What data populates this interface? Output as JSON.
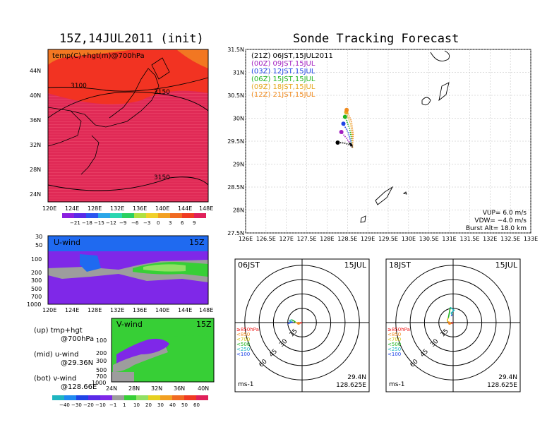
{
  "panel_titles": {
    "init": "15Z,14JUL2011 (init)",
    "tracking": "Sonde Tracking Forecast"
  },
  "colors": {
    "red": "#fb2a1e",
    "magenta": "#db1f6c",
    "purple": "#7f28e8",
    "blue": "#1f6af0",
    "green": "#37cf36",
    "lightgreen": "#91e064",
    "gray": "#9d9d9d",
    "orange": "#f08a1e"
  },
  "chart_data": [
    {
      "id": "map_700hpa",
      "type": "heatmap",
      "label": "temp(C)+hgt(m)@700hPa",
      "x_ticks": [
        "120E",
        "124E",
        "128E",
        "132E",
        "136E",
        "140E",
        "144E",
        "148E"
      ],
      "y_ticks": [
        "44N",
        "40N",
        "36N",
        "32N",
        "28N",
        "24N"
      ],
      "contour_labels": [
        "3100",
        "3150",
        "3150"
      ],
      "colorbar_labels": [
        "−21",
        "−18",
        "−15",
        "−12",
        "−9",
        "−6",
        "−3",
        "0",
        "3",
        "6",
        "9"
      ]
    },
    {
      "id": "u_wind",
      "type": "heatmap",
      "label": "U-wind",
      "time": "15Z",
      "y_ticks": [
        "30",
        "50",
        "100",
        "200",
        "300",
        "500",
        "700",
        "1000"
      ],
      "x_ticks": [
        "120E",
        "124E",
        "128E",
        "132E",
        "136E",
        "140E",
        "144E",
        "148E"
      ]
    },
    {
      "id": "v_wind",
      "type": "heatmap",
      "label": "V-wind",
      "time": "15Z",
      "y_ticks": [
        "100",
        "200",
        "300",
        "500",
        "700",
        "1000"
      ],
      "x_ticks": [
        "24N",
        "28N",
        "32N",
        "36N",
        "40N"
      ],
      "colorbar_labels": [
        "−40",
        "−30",
        "−20",
        "−10",
        "−1",
        "1",
        "10",
        "20",
        "30",
        "40",
        "50",
        "60"
      ]
    },
    {
      "id": "tracking",
      "type": "line",
      "xlim": [
        126,
        133
      ],
      "ylim": [
        27.5,
        31.5
      ],
      "x_ticks": [
        "126E",
        "126.5E",
        "127E",
        "127.5E",
        "128E",
        "128.5E",
        "129E",
        "129.5E",
        "130E",
        "130.5E",
        "131E",
        "131.5E",
        "132E",
        "132.5E",
        "133E"
      ],
      "y_ticks": [
        "31.5N",
        "31N",
        "30.5N",
        "30N",
        "29.5N",
        "29N",
        "28.5N",
        "28N",
        "27.5N"
      ],
      "launch": [
        128.625,
        29.36
      ],
      "series": [
        {
          "name": "(21Z) 06JST,15JUL2011",
          "color": "#000000",
          "points": [
            [
              128.625,
              29.36
            ],
            [
              128.55,
              29.42
            ],
            [
              128.42,
              29.46
            ],
            [
              128.26,
              29.47
            ]
          ]
        },
        {
          "name": "(00Z) 09JST,15JUL",
          "color": "#a21fbf",
          "points": [
            [
              128.625,
              29.36
            ],
            [
              128.56,
              29.46
            ],
            [
              128.46,
              29.58
            ],
            [
              128.35,
              29.7
            ]
          ]
        },
        {
          "name": "(03Z) 12JST,15JUL",
          "color": "#1f44e6",
          "points": [
            [
              128.625,
              29.36
            ],
            [
              128.58,
              29.5
            ],
            [
              128.52,
              29.68
            ],
            [
              128.4,
              29.88
            ]
          ]
        },
        {
          "name": "(06Z) 15JST,15JUL",
          "color": "#21b521",
          "points": [
            [
              128.625,
              29.36
            ],
            [
              128.6,
              29.55
            ],
            [
              128.55,
              29.78
            ],
            [
              128.44,
              30.03
            ]
          ]
        },
        {
          "name": "(09Z) 18JST,15JUL",
          "color": "#e6a820",
          "points": [
            [
              128.625,
              29.36
            ],
            [
              128.62,
              29.6
            ],
            [
              128.58,
              29.86
            ],
            [
              128.47,
              30.13
            ]
          ]
        },
        {
          "name": "(12Z) 21JST,15JUL",
          "color": "#f08a1e",
          "points": [
            [
              128.625,
              29.36
            ],
            [
              128.64,
              29.65
            ],
            [
              128.6,
              29.93
            ],
            [
              128.48,
              30.18
            ]
          ]
        }
      ],
      "info": [
        "VUP=  6.0  m/s",
        "VDW= −4.0  m/s",
        "Burst Alt= 18.0  km"
      ]
    },
    {
      "id": "hodograph_06",
      "type": "line",
      "time_label": "06JST",
      "date_label": "15JUL",
      "rings": [
        15,
        30,
        45,
        60
      ],
      "unit": "ms-1",
      "lat": "29.4N",
      "lon": "128.625E",
      "legend": [
        {
          "text": "≥850hPa",
          "color": "#f01e1e"
        },
        {
          "text": "<850",
          "color": "#f08a1e"
        },
        {
          "text": "<700",
          "color": "#d4c414"
        },
        {
          "text": "<500",
          "color": "#21b521"
        },
        {
          "text": "<250",
          "color": "#1fb5c0"
        },
        {
          "text": "<100",
          "color": "#1f44e6"
        }
      ],
      "segments": [
        {
          "color": "#f01e1e",
          "pts": [
            [
              0,
              0
            ],
            [
              -2,
              -0.5
            ],
            [
              -4,
              -0.6
            ]
          ]
        },
        {
          "color": "#f08a1e",
          "pts": [
            [
              -4,
              -0.6
            ],
            [
              -6,
              -0.3
            ]
          ]
        },
        {
          "color": "#d4c414",
          "pts": [
            [
              -6,
              -0.3
            ],
            [
              -7,
              0.5
            ]
          ]
        },
        {
          "color": "#21b521",
          "pts": [
            [
              -7,
              0.5
            ],
            [
              -9,
              2
            ],
            [
              -11,
              3
            ]
          ]
        },
        {
          "color": "#1fb5c0",
          "pts": [
            [
              -11,
              3
            ],
            [
              -13,
              2
            ],
            [
              -12,
              0.5
            ],
            [
              -10,
              0.8
            ]
          ]
        },
        {
          "color": "#1f44e6",
          "pts": [
            [
              -10,
              0.8
            ],
            [
              -13,
              -0.5
            ],
            [
              -15,
              -1
            ]
          ]
        }
      ]
    },
    {
      "id": "hodograph_18",
      "type": "line",
      "time_label": "18JST",
      "date_label": "15JUL",
      "rings": [
        15,
        30,
        45,
        60
      ],
      "unit": "ms-1",
      "lat": "29.4N",
      "lon": "128.625E",
      "legend": [
        {
          "text": "≥850hPa",
          "color": "#f01e1e"
        },
        {
          "text": "<850",
          "color": "#f08a1e"
        },
        {
          "text": "<700",
          "color": "#d4c414"
        },
        {
          "text": "<500",
          "color": "#21b521"
        },
        {
          "text": "<250",
          "color": "#1fb5c0"
        },
        {
          "text": "<100",
          "color": "#1f44e6"
        }
      ],
      "segments": [
        {
          "color": "#f01e1e",
          "pts": [
            [
              0,
              0
            ],
            [
              -1,
              -0.5
            ],
            [
              -2,
              -1
            ]
          ]
        },
        {
          "color": "#f08a1e",
          "pts": [
            [
              -2,
              -1
            ],
            [
              -4,
              0.5
            ],
            [
              -6,
              1
            ]
          ]
        },
        {
          "color": "#d4c414",
          "pts": [
            [
              -6,
              1
            ],
            [
              -6,
              3
            ],
            [
              -5,
              5
            ]
          ]
        },
        {
          "color": "#21b521",
          "pts": [
            [
              -5,
              5
            ],
            [
              -4,
              10
            ],
            [
              -3,
              16
            ]
          ]
        },
        {
          "color": "#1fb5c0",
          "pts": [
            [
              -3,
              16
            ],
            [
              1,
              13
            ],
            [
              -2,
              10
            ],
            [
              -1,
              8
            ]
          ]
        },
        {
          "color": "#1f44e6",
          "pts": [
            [
              -1,
              8
            ],
            [
              -2,
              7
            ]
          ]
        }
      ]
    }
  ],
  "notes": {
    "up": "(up) tmp+hgt",
    "up2": "@700hPa",
    "mid": "(mid) u-wind",
    "mid2": "@29.36N",
    "bot": "(bot) v-wind",
    "bot2": "@128.66E"
  }
}
